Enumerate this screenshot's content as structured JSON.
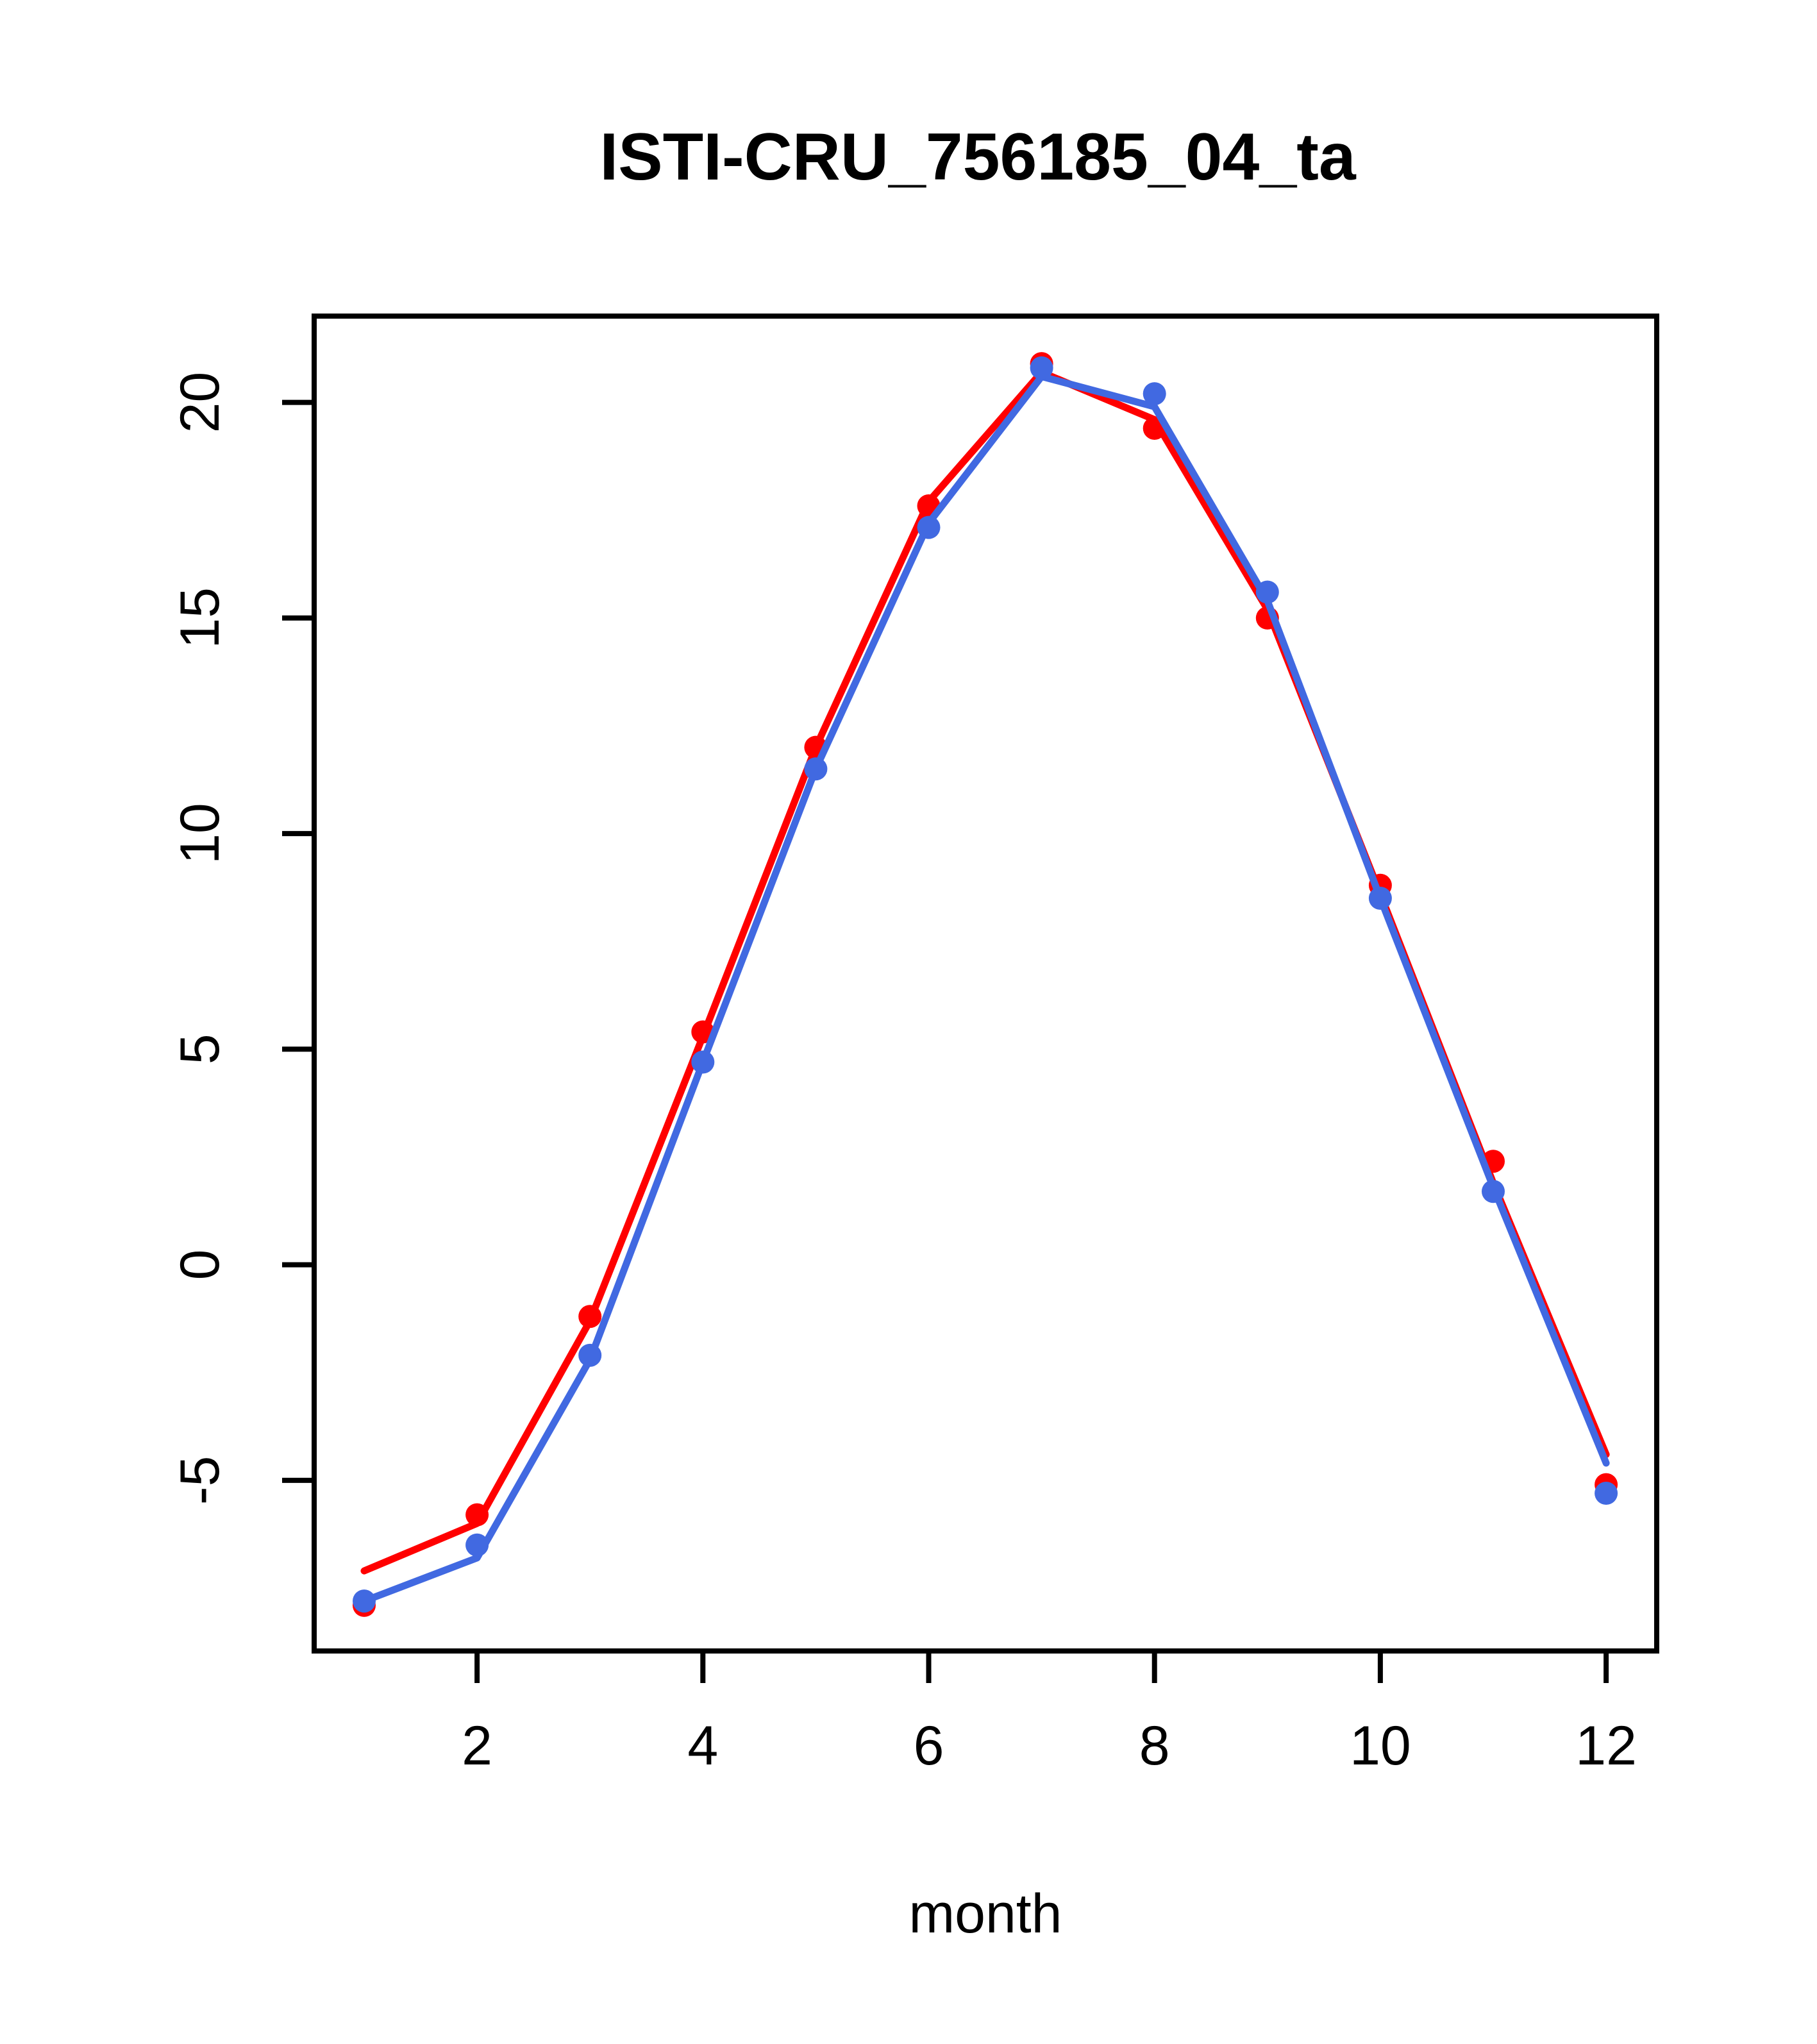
{
  "chart": {
    "title": "ISTI-CRU_756185_04_ta",
    "xlabel": "month",
    "background": "#ffffff",
    "axis_color": "#000000"
  },
  "chart_data": {
    "type": "line",
    "title": "ISTI-CRU_756185_04_ta",
    "xlabel": "month",
    "ylabel": "",
    "grid": false,
    "legend": "none",
    "x": [
      1,
      2,
      3,
      4,
      5,
      6,
      7,
      8,
      9,
      10,
      11,
      12
    ],
    "xlim": [
      0.56,
      12.44
    ],
    "ylim": [
      -8.96,
      22.04
    ],
    "x_ticks": [
      2,
      4,
      6,
      8,
      10,
      12
    ],
    "x_tick_labels": [
      "2",
      "4",
      "6",
      "8",
      "10",
      "12"
    ],
    "y_ticks": [
      -5,
      0,
      5,
      10,
      15,
      20
    ],
    "y_tick_labels": [
      "-5",
      "0",
      "5",
      "10",
      "15",
      "20"
    ],
    "series": [
      {
        "name": "red-points",
        "kind": "points",
        "color": "#ff0000",
        "values": [
          -7.9,
          -5.8,
          -1.2,
          5.4,
          12.0,
          17.6,
          20.9,
          19.4,
          15.0,
          8.8,
          2.4,
          -5.1
        ]
      },
      {
        "name": "red-line",
        "kind": "line",
        "color": "#ff0000",
        "values": [
          -7.1,
          -6.0,
          -1.3,
          5.3,
          12.0,
          17.7,
          20.7,
          19.6,
          15.2,
          8.6,
          1.9,
          -4.4
        ]
      },
      {
        "name": "blue-line",
        "kind": "line",
        "color": "#4169e1",
        "values": [
          -7.8,
          -6.8,
          -2.2,
          4.7,
          11.5,
          17.2,
          20.6,
          19.9,
          15.4,
          8.5,
          1.8,
          -4.6
        ]
      },
      {
        "name": "blue-points",
        "kind": "points",
        "color": "#4169e1",
        "values": [
          -7.8,
          -6.5,
          -2.1,
          4.7,
          11.5,
          17.1,
          20.8,
          20.2,
          15.6,
          8.5,
          1.7,
          -5.3
        ]
      }
    ]
  }
}
